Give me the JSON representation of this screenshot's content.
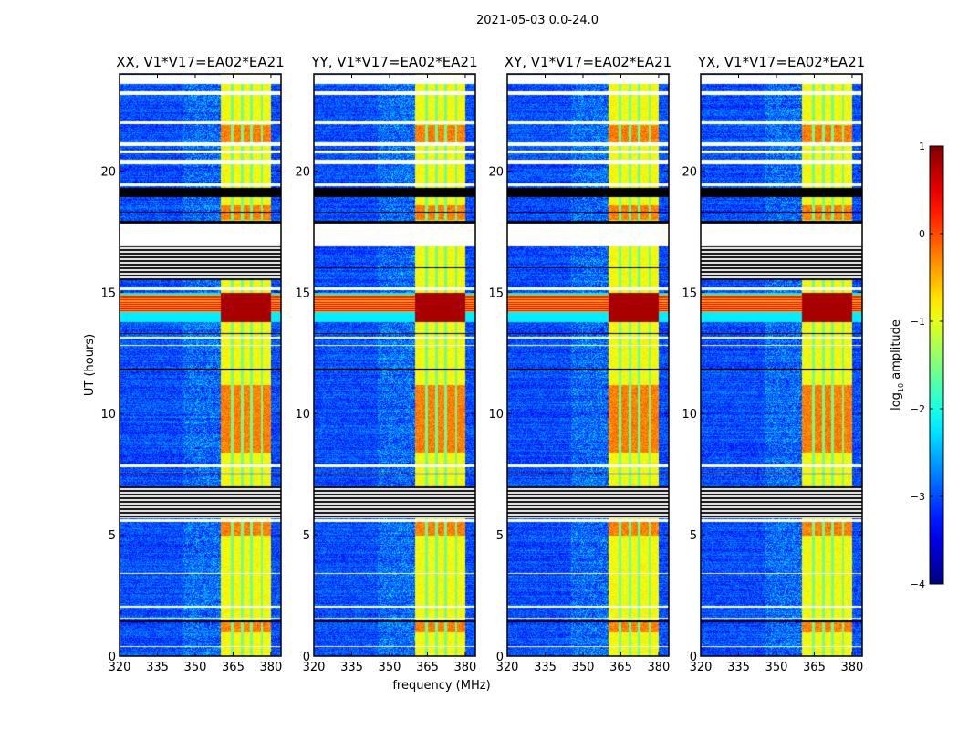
{
  "chart_data": {
    "type": "heatmap",
    "title": "2021-05-03 0.0-24.0",
    "xlabel": "frequency (MHz)",
    "ylabel": "UT (hours)",
    "xlim": [
      320,
      384
    ],
    "ylim": [
      0,
      24
    ],
    "xticks": [
      320,
      335,
      350,
      365,
      380
    ],
    "yticks": [
      0,
      5,
      10,
      15,
      20
    ],
    "panels": [
      {
        "title": "XX, V1*V17=EA02*EA21",
        "offband_red": true,
        "black_block": true
      },
      {
        "title": "YY, V1*V17=EA02*EA21",
        "offband_red": true,
        "black_block": false
      },
      {
        "title": "XY, V1*V17=EA02*EA21",
        "offband_red": true,
        "black_block": false
      },
      {
        "title": "YX, V1*V17=EA02*EA21",
        "offband_red": true,
        "black_block": true
      }
    ],
    "band_MHz": [
      360,
      380
    ],
    "band_gaps_MHz": [
      364.5,
      368.4,
      372.2,
      376.2
    ],
    "strong_rfi_hours": [
      13.8,
      15.0
    ],
    "bright_band_hours": [
      [
        8.4,
        11.2
      ],
      [
        21.2,
        21.9
      ],
      [
        5.0,
        5.6
      ],
      [
        1.0,
        1.5
      ],
      [
        18.0,
        18.6
      ]
    ],
    "flagged_white_hours": [
      [
        23.6,
        24
      ],
      [
        23.15,
        23.3
      ],
      [
        21.95,
        22.05
      ],
      [
        21.05,
        21.2
      ],
      [
        20.75,
        20.85
      ],
      [
        20.3,
        20.5
      ],
      [
        19.4,
        19.5
      ],
      [
        16.9,
        17.85
      ],
      [
        15.1,
        15.2
      ],
      [
        13.1,
        13.2
      ],
      [
        12.8,
        12.85
      ],
      [
        7.8,
        7.9
      ],
      [
        5.55,
        5.65
      ],
      [
        3.4,
        3.45
      ],
      [
        2.0,
        2.1
      ],
      [
        1.55,
        1.6
      ],
      [
        0.4,
        0.45
      ]
    ],
    "flagged_black_hours": [
      [
        18.95,
        19.3
      ],
      [
        17.85,
        17.95
      ],
      [
        18.3,
        18.35
      ],
      [
        13.3,
        13.35
      ],
      [
        11.8,
        11.85
      ],
      [
        7.5,
        7.55
      ],
      [
        1.4,
        1.5
      ],
      [
        16.0,
        16.05
      ]
    ],
    "black_striped_hours": [
      [
        5.7,
        7.0
      ],
      [
        15.5,
        16.9
      ]
    ],
    "colorbar": {
      "label": "log10 amplitude",
      "label_main": "log",
      "label_sub": "10",
      "label_rest": " amplitude",
      "ticks": [
        "1",
        "0",
        "−1",
        "−2",
        "−3",
        "−4"
      ],
      "range": [
        -4,
        1
      ],
      "colormap": "jet"
    }
  }
}
